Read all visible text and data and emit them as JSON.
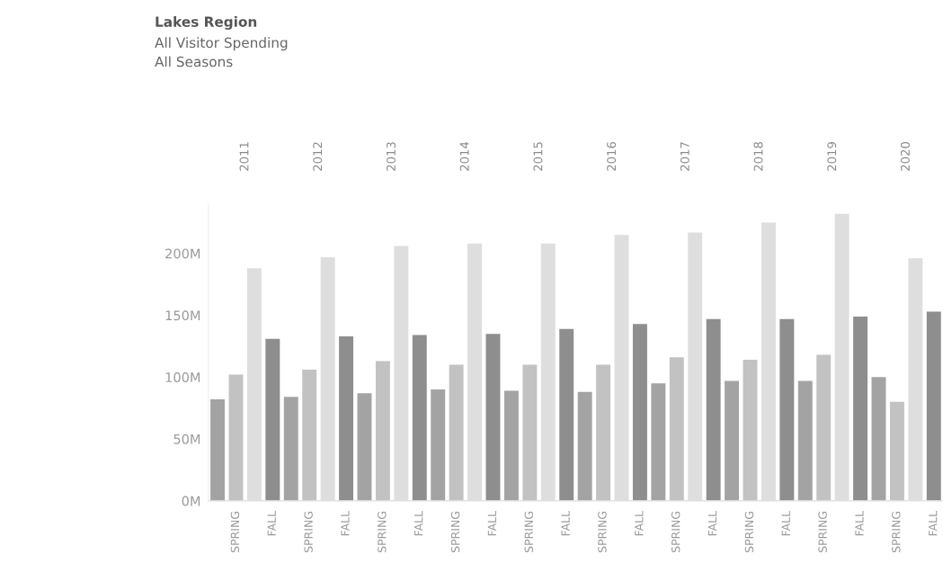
{
  "chart_data": {
    "type": "bar",
    "title": "Lakes Region",
    "subtitle": "All Visitor Spending\nAll Seasons",
    "categories": [
      null,
      "SPRING",
      null,
      "FALL",
      null,
      "SPRING",
      null,
      "FALL",
      null,
      "SPRING",
      null,
      "FALL",
      null,
      "SPRING",
      null,
      "FALL",
      null,
      "SPRING",
      null,
      "FALL",
      null,
      "SPRING",
      null,
      "FALL",
      null,
      "SPRING",
      null,
      "FALL",
      null,
      "SPRING",
      null,
      "FALL",
      null,
      "SPRING",
      null,
      "FALL",
      null,
      "SPRING",
      null,
      "FALL"
    ],
    "values": [
      82,
      102,
      188,
      131,
      84,
      106,
      197,
      133,
      87,
      113,
      206,
      134,
      90,
      110,
      208,
      135,
      89,
      110,
      208,
      139,
      88,
      110,
      215,
      143,
      95,
      116,
      217,
      147,
      97,
      114,
      225,
      147,
      97,
      118,
      232,
      149,
      100,
      80,
      196,
      153
    ],
    "colors": [
      "#a3a3a3",
      "#c2c2c2",
      "#dedede",
      "#8e8e8e",
      "#a3a3a3",
      "#c2c2c2",
      "#dedede",
      "#8e8e8e",
      "#a3a3a3",
      "#c2c2c2",
      "#dedede",
      "#8e8e8e",
      "#a3a3a3",
      "#c2c2c2",
      "#dedede",
      "#8e8e8e",
      "#a3a3a3",
      "#c2c2c2",
      "#dedede",
      "#8e8e8e",
      "#a3a3a3",
      "#c2c2c2",
      "#dedede",
      "#8e8e8e",
      "#a3a3a3",
      "#c2c2c2",
      "#dedede",
      "#8e8e8e",
      "#a3a3a3",
      "#c2c2c2",
      "#dedede",
      "#8e8e8e",
      "#a3a3a3",
      "#c2c2c2",
      "#dedede",
      "#8e8e8e",
      "#a3a3a3",
      "#c2c2c2",
      "#dedede",
      "#8e8e8e"
    ],
    "annotations": [
      "2011",
      "2012",
      "2013",
      "2014",
      "2015",
      "2016",
      "2017",
      "2018",
      "2019",
      "2020"
    ],
    "ylim": [
      0,
      240
    ],
    "yticks": [
      {
        "value": 0,
        "label": "0M"
      },
      {
        "value": 50,
        "label": "50M"
      },
      {
        "value": 100,
        "label": "100M"
      },
      {
        "value": 150,
        "label": "150M"
      },
      {
        "value": 200,
        "label": "200M"
      }
    ],
    "grid": false,
    "legend": false
  }
}
